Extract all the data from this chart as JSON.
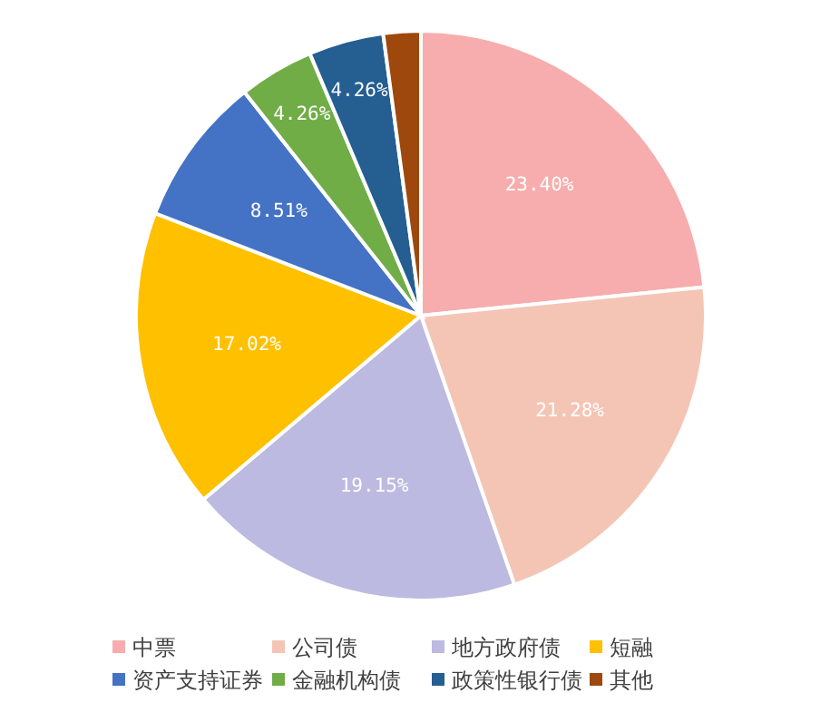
{
  "chart_data": {
    "type": "pie",
    "categories": [
      "中票",
      "公司债",
      "地方政府债",
      "短融",
      "资产支持证券",
      "金融机构债",
      "政策性银行债",
      "其他"
    ],
    "values": [
      23.4,
      21.28,
      19.15,
      17.02,
      8.51,
      4.26,
      4.26,
      2.12
    ],
    "colors": [
      "#f7adad",
      "#f4c5b5",
      "#bcbae0",
      "#ffc000",
      "#4472c4",
      "#70ad47",
      "#255e91",
      "#9e480e"
    ],
    "value_labels": [
      "23.40%",
      "21.28%",
      "19.15%",
      "17.02%",
      "8.51%",
      "4.26%",
      "4.26%",
      null
    ],
    "legend": "bottom"
  }
}
